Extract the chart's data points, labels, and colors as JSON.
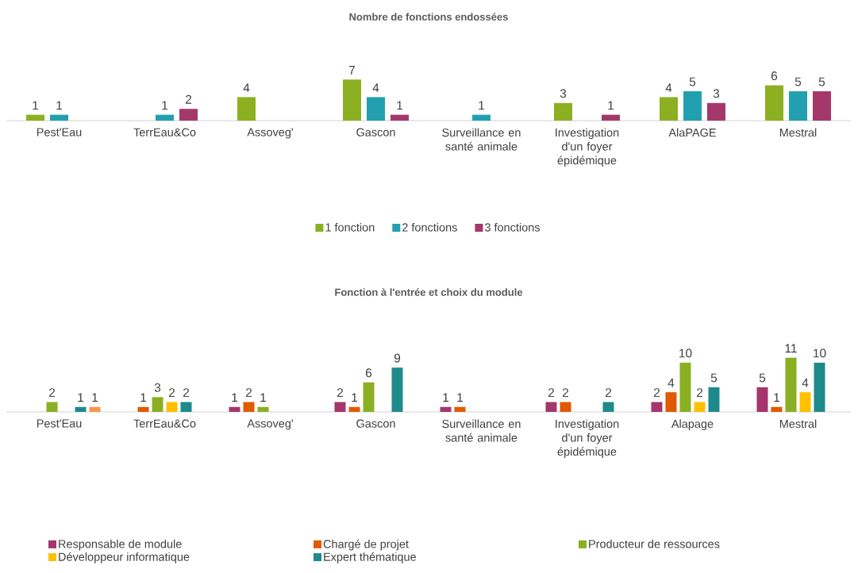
{
  "chart_data": [
    {
      "type": "bar",
      "title": "Nombre de fonctions endossées",
      "categories": [
        "Pest'Eau",
        "TerrEau&Co",
        "Assoveg'",
        "Gascon",
        "Surveillance en santé animale",
        "Investigation d'un foyer épidémique",
        "AlaPAGE",
        "Mestral"
      ],
      "series": [
        {
          "name": "1 fonction",
          "color": "#8cb021",
          "values": [
            1,
            null,
            4,
            7,
            null,
            3,
            4,
            6
          ]
        },
        {
          "name": "2 fonctions",
          "color": "#22a0b0",
          "values": [
            1,
            1,
            null,
            4,
            1,
            null,
            5,
            5
          ]
        },
        {
          "name": "3 fonctions",
          "color": "#a5386a",
          "values": [
            null,
            2,
            null,
            1,
            null,
            1,
            3,
            5
          ]
        }
      ],
      "data_labels": true,
      "legend": "bottom"
    },
    {
      "type": "bar",
      "title": "Fonction à l'entrée et choix du module",
      "categories": [
        "Pest'Eau",
        "TerrEau&Co",
        "Assoveg'",
        "Gascon",
        "Surveillance en santé animale",
        "Investigation d'un foyer épidémique",
        "Alapage",
        "Mestral"
      ],
      "series": [
        {
          "name": "Responsable de module",
          "color": "#a3366a",
          "values": [
            null,
            null,
            1,
            2,
            1,
            2,
            2,
            5
          ]
        },
        {
          "name": "Chargé de projet",
          "color": "#e05a00",
          "values": [
            null,
            1,
            2,
            1,
            1,
            2,
            4,
            1
          ]
        },
        {
          "name": "Producteur de ressources",
          "color": "#8aaf22",
          "values": [
            2,
            3,
            1,
            6,
            null,
            null,
            10,
            11
          ]
        },
        {
          "name": "Développeur informatique",
          "color": "#ffc000",
          "values": [
            null,
            2,
            null,
            null,
            null,
            null,
            2,
            4
          ]
        },
        {
          "name": "Expert thématique",
          "color": "#1e8a8c",
          "values": [
            1,
            2,
            null,
            9,
            null,
            2,
            5,
            10
          ]
        },
        {
          "color": "#f79646",
          "values": [
            1,
            null,
            null,
            null,
            null,
            null,
            null,
            null
          ]
        }
      ],
      "data_labels": true,
      "legend": "bottom"
    }
  ]
}
